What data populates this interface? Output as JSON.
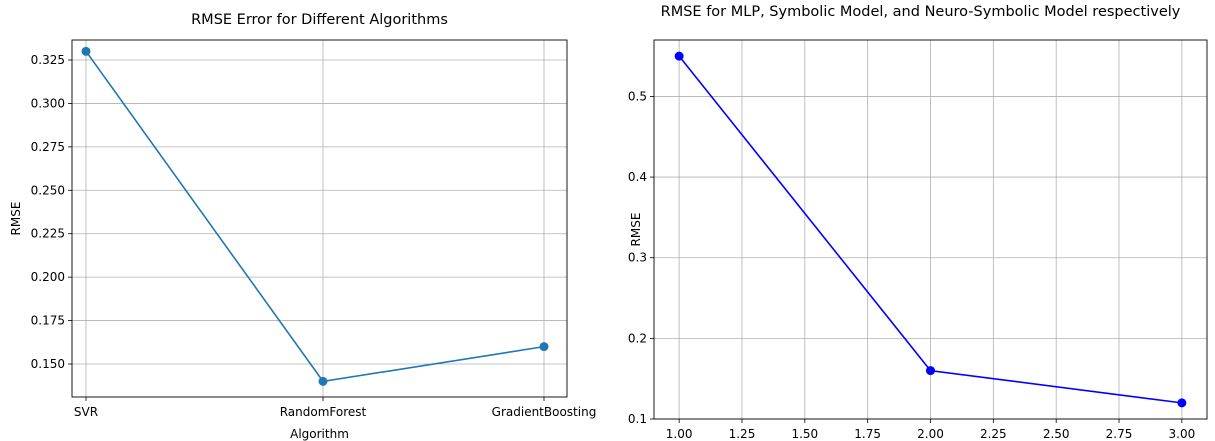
{
  "chart_data": [
    {
      "type": "line",
      "title": "RMSE Error for Different Algorithms",
      "xlabel": "Algorithm",
      "ylabel": "RMSE",
      "categories": [
        "SVR",
        "RandomForest",
        "GradientBoosting"
      ],
      "values": [
        0.33,
        0.14,
        0.16
      ],
      "ylim": [
        0.13,
        0.34
      ],
      "yticks": [
        "0.150",
        "0.175",
        "0.200",
        "0.225",
        "0.250",
        "0.275",
        "0.300",
        "0.325"
      ],
      "grid": true,
      "color": "#1f77b4",
      "marker": "circle"
    },
    {
      "type": "line",
      "title": "RMSE for MLP, Symbolic Model, and Neuro-Symbolic Model respectively",
      "xlabel": "",
      "ylabel": "RMSE",
      "x": [
        1,
        2,
        3
      ],
      "values": [
        0.55,
        0.16,
        0.12
      ],
      "xlim": [
        0.9,
        3.1
      ],
      "ylim": [
        0.1,
        0.57
      ],
      "xticks": [
        "1.00",
        "1.25",
        "1.50",
        "1.75",
        "2.00",
        "2.25",
        "2.50",
        "2.75",
        "3.00"
      ],
      "yticks": [
        "0.1",
        "0.2",
        "0.3",
        "0.4",
        "0.5"
      ],
      "grid": true,
      "color": "#0000ff",
      "marker": "circle"
    }
  ]
}
